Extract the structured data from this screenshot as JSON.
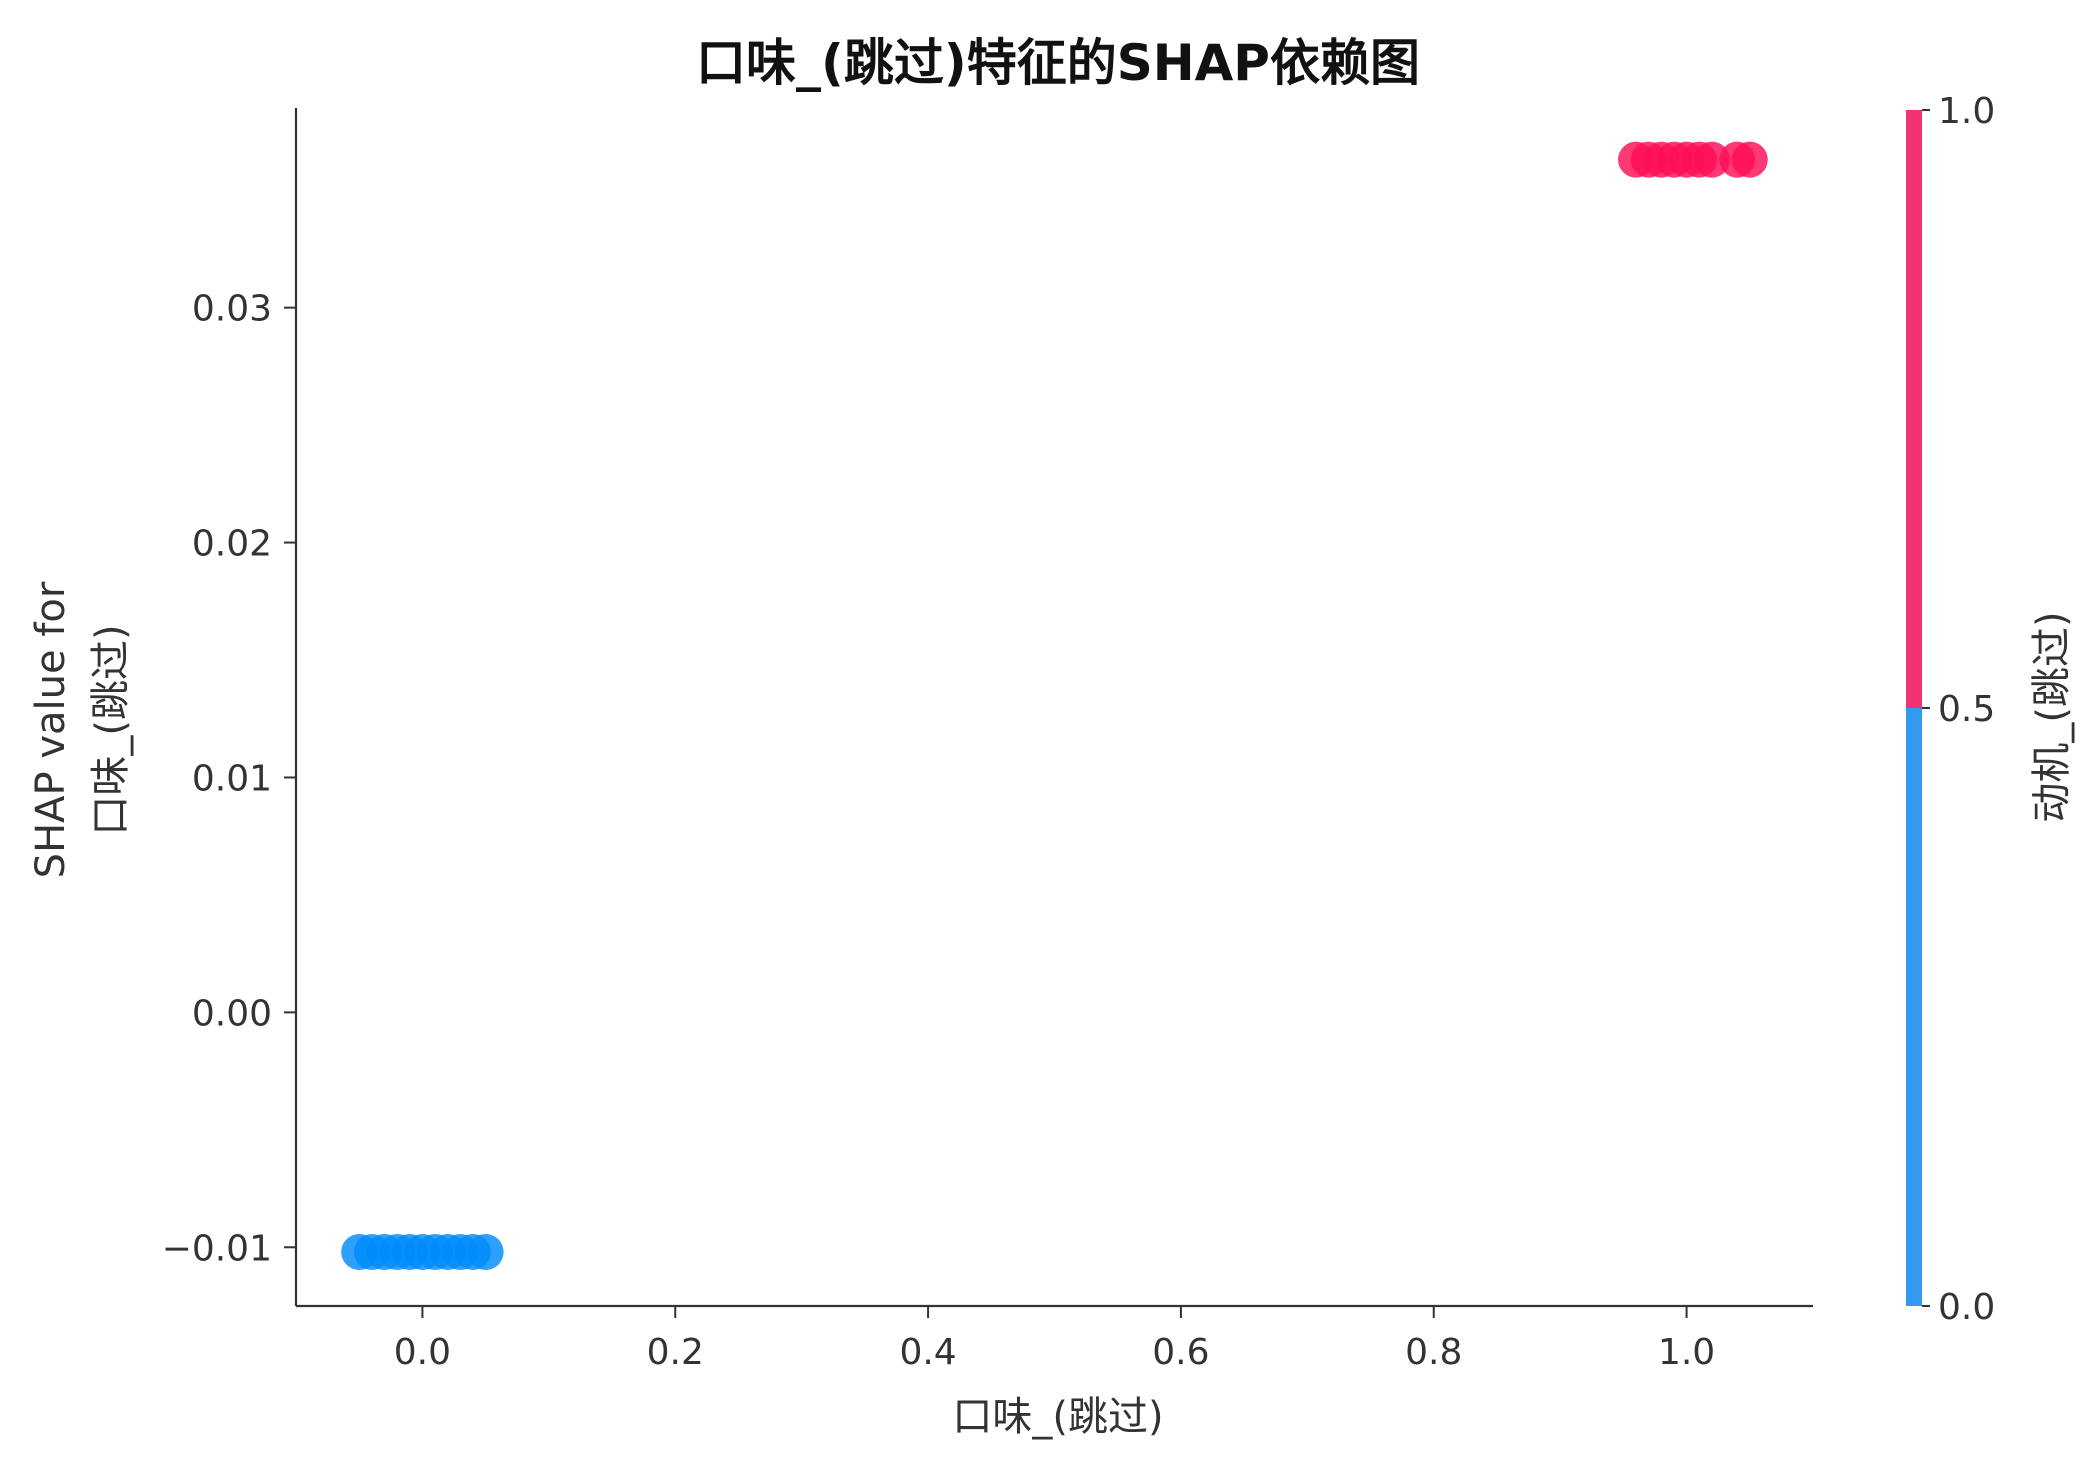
{
  "chart_data": {
    "type": "scatter",
    "title": "口味_(跳过)特征的SHAP依赖图",
    "xlabel": "口味_(跳过)",
    "ylabel_lines": [
      "SHAP value for",
      "口味_(跳过)"
    ],
    "xlim": [
      -0.1,
      1.1
    ],
    "ylim": [
      -0.0125,
      0.0385
    ],
    "xticks": [
      0.0,
      0.2,
      0.4,
      0.6,
      0.8,
      1.0
    ],
    "xtick_labels": [
      "0.0",
      "0.2",
      "0.4",
      "0.6",
      "0.8",
      "1.0"
    ],
    "yticks": [
      -0.01,
      0.0,
      0.01,
      0.02,
      0.03
    ],
    "ytick_labels": [
      "−0.01",
      "0.00",
      "0.01",
      "0.02",
      "0.03"
    ],
    "grid": false,
    "series": [
      {
        "color_value": 0.0,
        "color": "#008bfb",
        "y": -0.0102,
        "x": [
          -0.05,
          -0.04,
          -0.03,
          -0.02,
          -0.01,
          0.0,
          0.01,
          0.02,
          0.03,
          0.04,
          0.05
        ]
      },
      {
        "color_value": 1.0,
        "color": "#ff0d57",
        "y": 0.0363,
        "x": [
          0.96,
          0.97,
          0.98,
          0.99,
          1.0,
          1.01,
          1.02,
          1.04,
          1.05
        ]
      }
    ],
    "colorbar": {
      "label": "动机_(跳过)",
      "ticks": [
        0.0,
        0.5,
        1.0
      ],
      "tick_labels": [
        "0.0",
        "0.5",
        "1.0"
      ],
      "low_color": "#3399f0",
      "high_color": "#f53270",
      "threshold": 0.5
    }
  }
}
